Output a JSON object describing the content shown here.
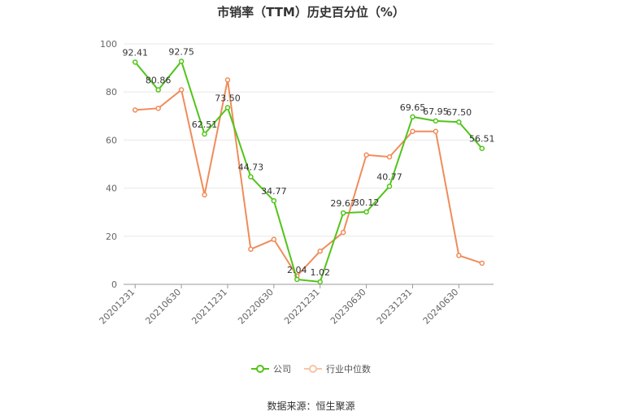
{
  "chart_data": {
    "type": "line",
    "title": "市销率（TTM）历史百分位（%）",
    "ylim": [
      0,
      100
    ],
    "yticks": [
      0,
      20,
      40,
      60,
      80,
      100
    ],
    "x_tick_labels": [
      "20201231",
      "20210630",
      "20211231",
      "20220630",
      "20221231",
      "20230630",
      "20231231",
      "20240630"
    ],
    "categories": [
      "20201231",
      "20210331",
      "20210630",
      "20210930",
      "20211231",
      "20220331",
      "20220630",
      "20220930",
      "20221231",
      "20230331",
      "20230630",
      "20230930",
      "20231231",
      "20240331",
      "20240630",
      "20240930"
    ],
    "series": [
      {
        "name": "公司",
        "color": "#52c41a",
        "values": [
          92.41,
          80.86,
          92.75,
          62.51,
          73.5,
          44.73,
          34.77,
          2.04,
          1.02,
          29.67,
          30.12,
          40.77,
          69.65,
          67.95,
          67.5,
          56.51
        ],
        "labels": [
          "92.41",
          "80.86",
          "92.75",
          "62.51",
          "73.50",
          "44.73",
          "34.77",
          "2.04",
          "1.02",
          "29.67",
          "30.12",
          "40.77",
          "69.65",
          "67.95",
          "67.50",
          "56.51"
        ]
      },
      {
        "name": "行业中位数",
        "color": "#f08c5a",
        "values": [
          72.5,
          73.2,
          80.9,
          37.2,
          85.0,
          14.6,
          18.7,
          3.5,
          13.8,
          21.6,
          53.8,
          53.0,
          63.6,
          63.6,
          12.0,
          8.8
        ]
      }
    ],
    "grid": true,
    "legend_position": "bottom-center"
  },
  "source_text": "数据来源：恒生聚源"
}
